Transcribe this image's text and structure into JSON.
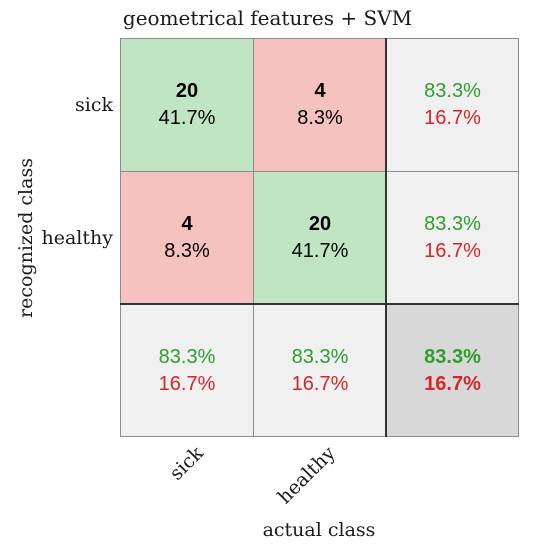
{
  "chart_data": {
    "type": "heatmap",
    "title": "geometrical features + SVM",
    "xlabel": "actual class",
    "ylabel": "recognized class",
    "row_labels": [
      "sick",
      "healthy"
    ],
    "col_labels": [
      "sick",
      "healthy"
    ],
    "counts": [
      [
        20,
        4
      ],
      [
        4,
        20
      ]
    ],
    "percents": [
      [
        "41.7%",
        "8.3%"
      ],
      [
        "8.3%",
        "41.7%"
      ]
    ],
    "row_summary": [
      [
        "83.3%",
        "16.7%"
      ],
      [
        "83.3%",
        "16.7%"
      ]
    ],
    "col_summary": [
      [
        "83.3%",
        "16.7%"
      ],
      [
        "83.3%",
        "16.7%"
      ]
    ],
    "overall": [
      "83.3%",
      "16.7%"
    ]
  },
  "colors": {
    "correct_fill": "#bfe5c3",
    "incorrect_fill": "#f5c2bf",
    "summary_fill": "#f0f0f0",
    "overall_fill": "#d8d8d8",
    "good_text": "#2ca02c",
    "bad_text": "#d62728"
  }
}
